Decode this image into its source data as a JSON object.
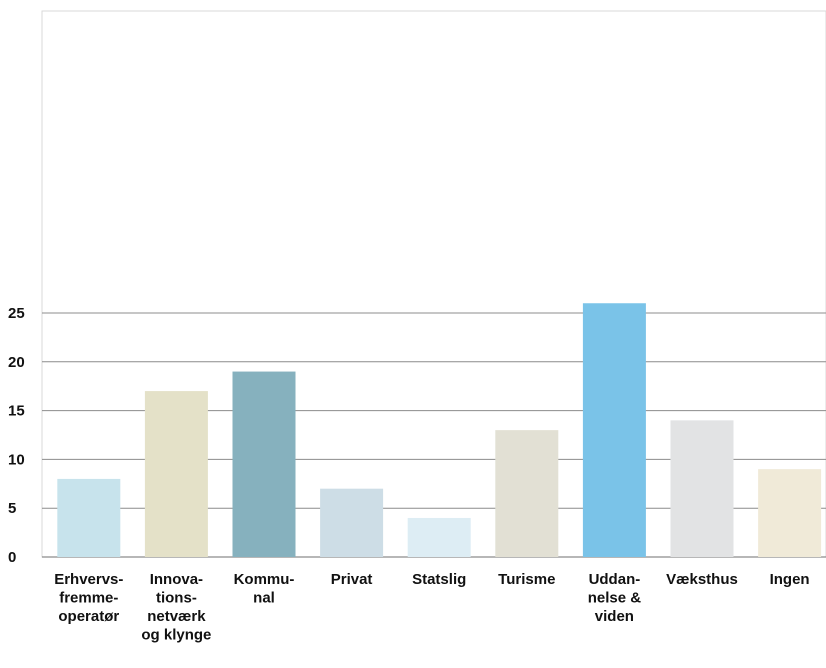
{
  "chart_data": {
    "type": "bar",
    "title": "",
    "xlabel": "",
    "ylabel": "",
    "ylim": [
      0,
      28
    ],
    "yticks": [
      0,
      5,
      10,
      15,
      20,
      25
    ],
    "grid": true,
    "legend": "none",
    "categories": [
      [
        "Erhvervs-",
        "fremme-",
        "operatør"
      ],
      [
        "Innova-",
        "tions-",
        "netværk",
        "og klynge"
      ],
      [
        "Kommu-",
        "nal"
      ],
      [
        "Privat"
      ],
      [
        "Statslig"
      ],
      [
        "Turisme"
      ],
      [
        "Uddan-",
        "nelse &",
        "viden"
      ],
      [
        "Væksthus"
      ],
      [
        "Ingen"
      ]
    ],
    "values": [
      8,
      17,
      19,
      7,
      4,
      13,
      26,
      14,
      9
    ],
    "colors": [
      "#c7e3ec",
      "#e4e1c8",
      "#86b1be",
      "#cddde6",
      "#ddedf4",
      "#e2e0d4",
      "#7ac3e8",
      "#e2e3e4",
      "#f0ead8"
    ]
  }
}
